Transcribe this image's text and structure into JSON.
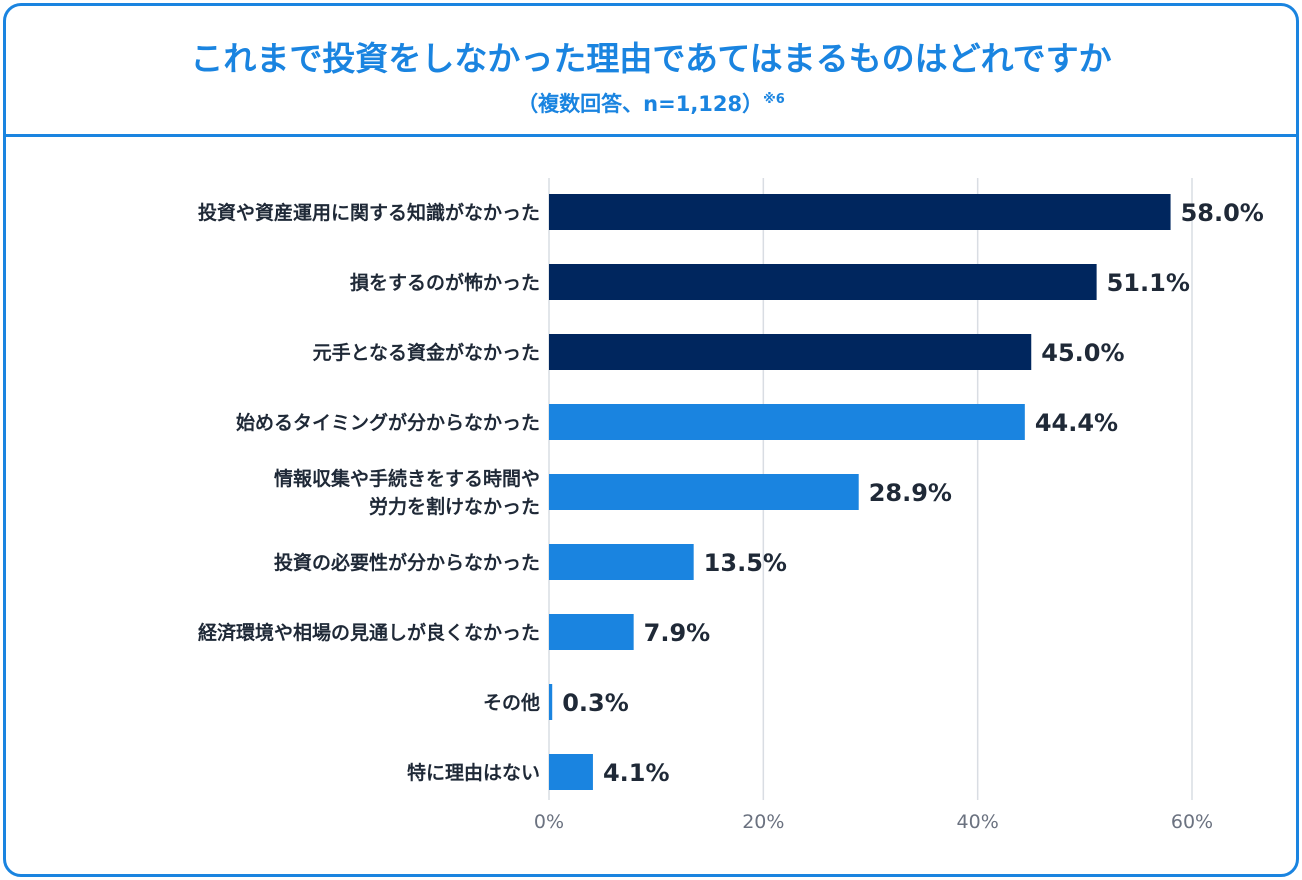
{
  "header": {
    "title": "これまで投資をしなかった理由であてはまるものはどれですか",
    "subtitle": "（複数回答、n=1,128）",
    "footnote_mark": "※6"
  },
  "colors": {
    "frame": "#1a84e0",
    "title": "#1a84e0",
    "bar_dark": "#00265e",
    "bar_light": "#1a84e0",
    "grid": "#d9dde3",
    "label_text": "#1f2937",
    "tick_text": "#6b7280"
  },
  "chart_data": {
    "type": "bar",
    "orientation": "horizontal",
    "title": "これまで投資をしなかった理由であてはまるものはどれですか",
    "subtitle": "（複数回答、n=1,128）※6",
    "categories": [
      "投資や資産運用に関する知識がなかった",
      "損をするのが怖かった",
      "元手となる資金がなかった",
      "始めるタイミングが分からなかった",
      "情報収集や手続きをする時間や\n労力を割けなかった",
      "投資の必要性が分からなかった",
      "経済環境や相場の見通しが良くなかった",
      "その他",
      "特に理由はない"
    ],
    "values": [
      58.0,
      51.1,
      45.0,
      44.4,
      28.9,
      13.5,
      7.9,
      0.3,
      4.1
    ],
    "value_labels": [
      "58.0%",
      "51.1%",
      "45.0%",
      "44.4%",
      "28.9%",
      "13.5%",
      "7.9%",
      "0.3%",
      "4.1%"
    ],
    "highlight_top": 3,
    "xlim": [
      0,
      60
    ],
    "xticks": [
      0,
      20,
      40,
      60
    ],
    "xtick_labels": [
      "0%",
      "20%",
      "40%",
      "60%"
    ],
    "grid": true,
    "xlabel": "",
    "ylabel": ""
  }
}
